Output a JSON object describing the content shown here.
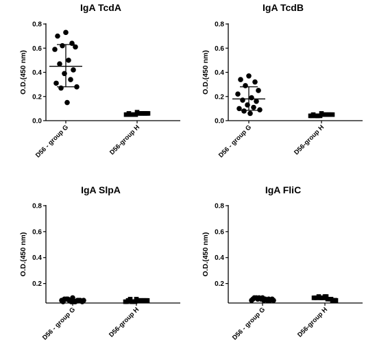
{
  "chart_data": [
    {
      "type": "scatter",
      "title": "IgA TcdA",
      "ylabel": "O.D.(450 nm)",
      "ylim": [
        0,
        0.8
      ],
      "yticks": [
        "0.0",
        "0.2",
        "0.4",
        "0.6",
        "0.8"
      ],
      "categories": [
        "D56 - group G",
        "D56-group H"
      ],
      "groups": [
        {
          "category": "D56 - group G",
          "marker": "circle",
          "values": [
            0.73,
            0.7,
            0.64,
            0.62,
            0.61,
            0.59,
            0.5,
            0.47,
            0.42,
            0.39,
            0.34,
            0.31,
            0.28,
            0.27,
            0.15
          ],
          "mean": 0.45,
          "sd_low": 0.28,
          "sd_high": 0.63
        },
        {
          "category": "D56-group H",
          "marker": "square",
          "values": [
            0.07,
            0.06,
            0.06,
            0.05,
            0.06,
            0.05,
            0.06,
            0.05,
            0.06,
            0.05,
            0.06,
            0.05,
            0.06,
            0.05,
            0.06
          ],
          "mean": 0.057,
          "sd_low": 0.05,
          "sd_high": 0.064
        }
      ]
    },
    {
      "type": "scatter",
      "title": "IgA TcdB",
      "ylabel": "O.D.(450 nm)",
      "ylim": [
        0,
        0.8
      ],
      "yticks": [
        "0.0",
        "0.2",
        "0.4",
        "0.6",
        "0.8"
      ],
      "categories": [
        "D56 - group G",
        "D56-group H"
      ],
      "groups": [
        {
          "category": "D56 - group G",
          "marker": "circle",
          "values": [
            0.37,
            0.34,
            0.32,
            0.29,
            0.25,
            0.22,
            0.19,
            0.17,
            0.16,
            0.13,
            0.11,
            0.1,
            0.09,
            0.08,
            0.06
          ],
          "mean": 0.18,
          "sd_low": 0.085,
          "sd_high": 0.28
        },
        {
          "category": "D56-group H",
          "marker": "square",
          "values": [
            0.06,
            0.05,
            0.05,
            0.04,
            0.05,
            0.04,
            0.05,
            0.04,
            0.05,
            0.04,
            0.05,
            0.04,
            0.05,
            0.04,
            0.05
          ],
          "mean": 0.047,
          "sd_low": 0.04,
          "sd_high": 0.054
        }
      ]
    },
    {
      "type": "scatter",
      "title": "IgA SlpA",
      "ylabel": "O.D.(450 nm)",
      "ylim": [
        0.05,
        0.8
      ],
      "yticks": [
        "0.2",
        "0.4",
        "0.6",
        "0.8"
      ],
      "categories": [
        "D56 - group G",
        "D56-group H"
      ],
      "groups": [
        {
          "category": "D56 - group G",
          "marker": "circle",
          "values": [
            0.09,
            0.08,
            0.07,
            0.07,
            0.06,
            0.07,
            0.06,
            0.08,
            0.07,
            0.06,
            0.07,
            0.06,
            0.07,
            0.08,
            0.06
          ],
          "mean": 0.07,
          "sd_low": 0.062,
          "sd_high": 0.078
        },
        {
          "category": "D56-group H",
          "marker": "square",
          "values": [
            0.08,
            0.07,
            0.07,
            0.06,
            0.07,
            0.06,
            0.07,
            0.08,
            0.07,
            0.06,
            0.07,
            0.06,
            0.07,
            0.06,
            0.07
          ],
          "mean": 0.068,
          "sd_low": 0.061,
          "sd_high": 0.075
        }
      ]
    },
    {
      "type": "scatter",
      "title": "IgA FliC",
      "ylabel": "O.D.(450 nm)",
      "ylim": [
        0.05,
        0.8
      ],
      "yticks": [
        "0.2",
        "0.4",
        "0.6",
        "0.8"
      ],
      "categories": [
        "D56 - group G",
        "D56-group H"
      ],
      "groups": [
        {
          "category": "D56 - group G",
          "marker": "circle",
          "values": [
            0.09,
            0.09,
            0.08,
            0.09,
            0.08,
            0.07,
            0.08,
            0.09,
            0.07,
            0.08,
            0.07,
            0.08,
            0.07,
            0.08,
            0.07
          ],
          "mean": 0.08,
          "sd_low": 0.073,
          "sd_high": 0.087
        },
        {
          "category": "D56-group H",
          "marker": "square",
          "values": [
            0.1,
            0.09,
            0.08,
            0.09,
            0.07,
            0.09,
            0.08,
            0.1,
            0.07,
            0.09,
            0.08,
            0.09,
            0.07,
            0.09,
            0.1
          ],
          "mean": 0.085,
          "sd_low": 0.076,
          "sd_high": 0.094
        }
      ]
    }
  ]
}
